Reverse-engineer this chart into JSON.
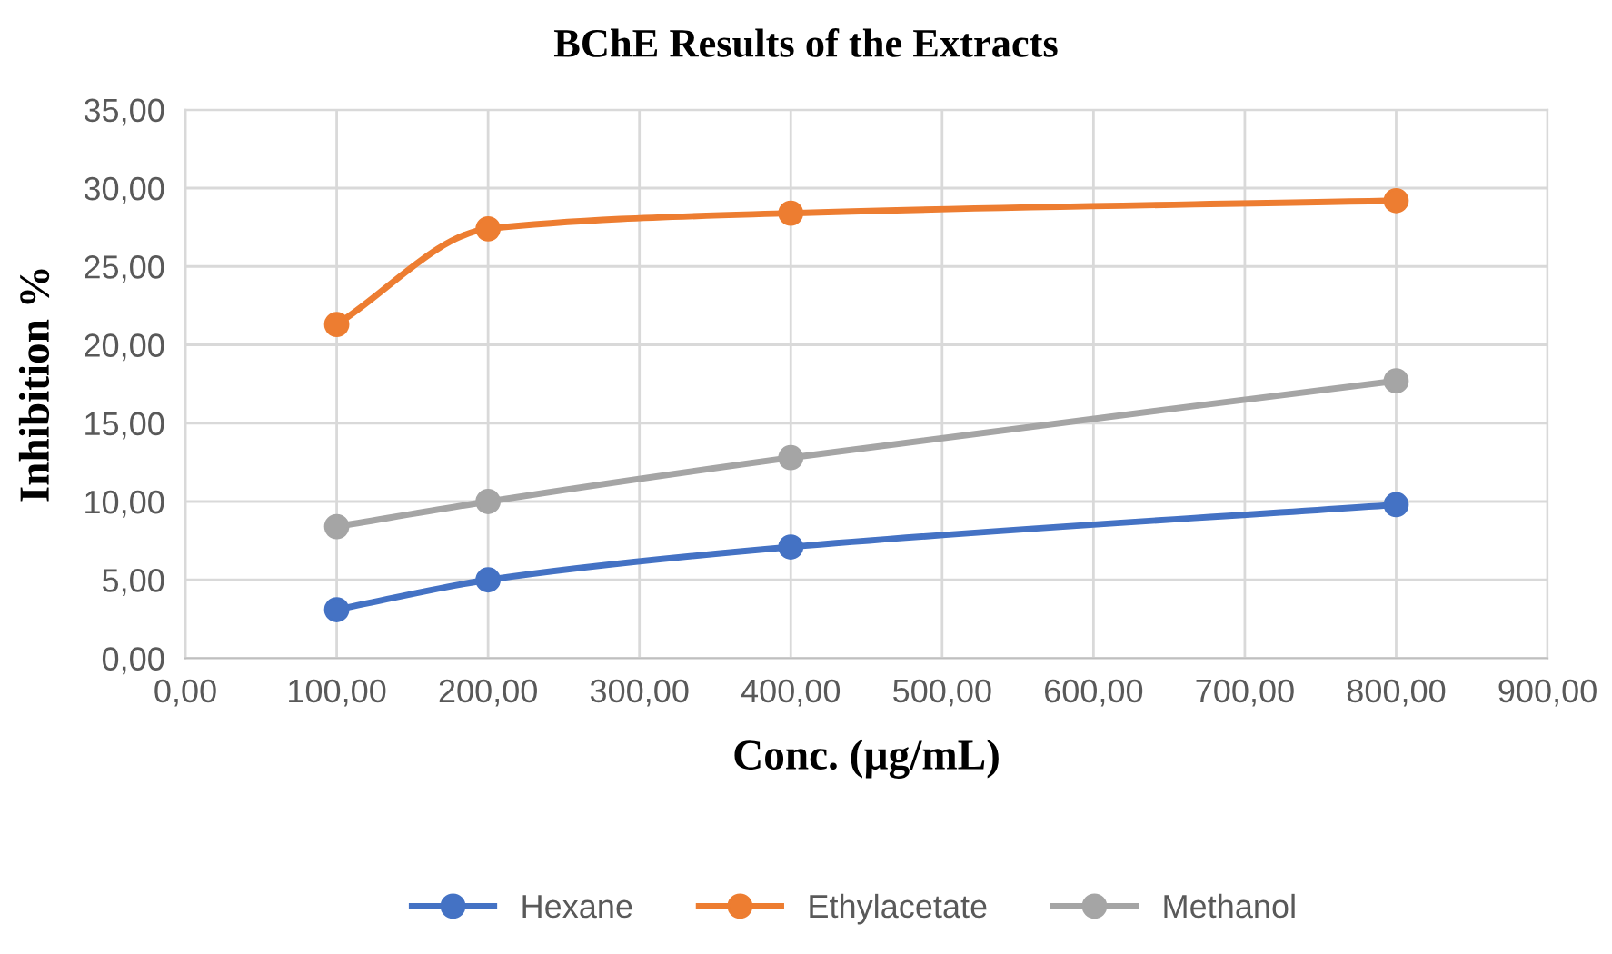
{
  "chart_data": {
    "type": "line",
    "title": "BChE Results of the Extracts",
    "xlabel": "Conc. (µg/mL)",
    "ylabel": "Inhibition %",
    "x": [
      100,
      200,
      400,
      800
    ],
    "series": [
      {
        "name": "Hexane",
        "color": "#4472c4",
        "values": [
          3.1,
          5.0,
          7.1,
          9.8
        ]
      },
      {
        "name": "Ethylacetate",
        "color": "#ed7d31",
        "values": [
          21.3,
          27.4,
          28.4,
          29.2
        ]
      },
      {
        "name": "Methanol",
        "color": "#a5a5a5",
        "values": [
          8.4,
          10.0,
          12.8,
          17.7
        ]
      }
    ],
    "xlim": [
      0,
      900
    ],
    "xticks": [
      {
        "value": 0,
        "label": "0,00"
      },
      {
        "value": 100,
        "label": "100,00"
      },
      {
        "value": 200,
        "label": "200,00"
      },
      {
        "value": 300,
        "label": "300,00"
      },
      {
        "value": 400,
        "label": "400,00"
      },
      {
        "value": 500,
        "label": "500,00"
      },
      {
        "value": 600,
        "label": "600,00"
      },
      {
        "value": 700,
        "label": "700,00"
      },
      {
        "value": 800,
        "label": "800,00"
      },
      {
        "value": 900,
        "label": "900,00"
      }
    ],
    "ylim": [
      0,
      35
    ],
    "yticks": [
      {
        "value": 0,
        "label": "0,00"
      },
      {
        "value": 5,
        "label": "5,00"
      },
      {
        "value": 10,
        "label": "10,00"
      },
      {
        "value": 15,
        "label": "15,00"
      },
      {
        "value": 20,
        "label": "20,00"
      },
      {
        "value": 25,
        "label": "25,00"
      },
      {
        "value": 30,
        "label": "30,00"
      },
      {
        "value": 35,
        "label": "35,00"
      }
    ],
    "grid": true,
    "legend": "bottom",
    "marker": "circle",
    "line_style": "solid"
  }
}
